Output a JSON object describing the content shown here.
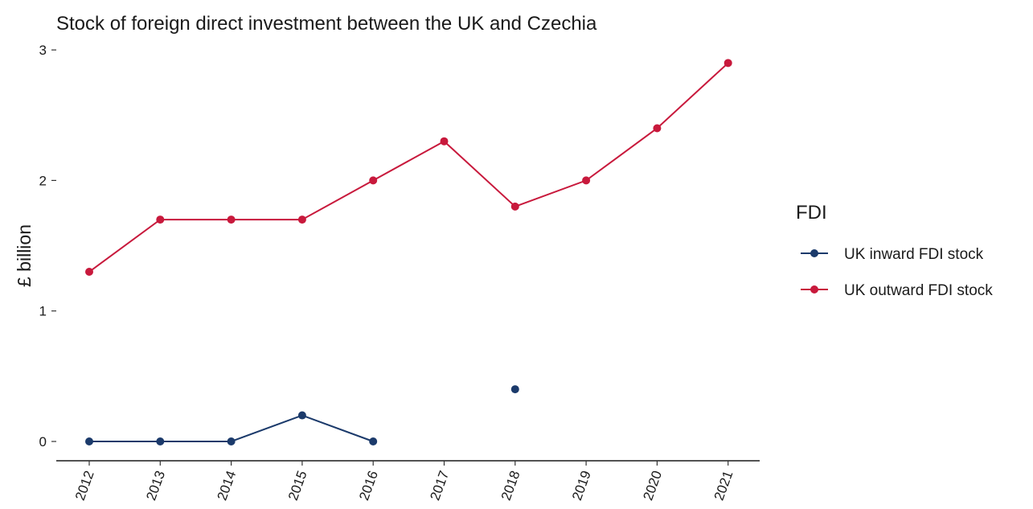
{
  "chart_data": {
    "type": "line",
    "title": "Stock of foreign direct investment between the UK and Czechia",
    "xlabel": "",
    "ylabel": "£ billion",
    "categories": [
      "2012",
      "2013",
      "2014",
      "2015",
      "2016",
      "2017",
      "2018",
      "2019",
      "2020",
      "2021"
    ],
    "y_ticks": [
      "0",
      "1",
      "2",
      "3"
    ],
    "ylim": [
      -0.15,
      3.05
    ],
    "grid": false,
    "legend": {
      "title": "FDI",
      "placement": "right"
    },
    "series": [
      {
        "name": "UK inward FDI stock",
        "color": "#1b3a6b",
        "values": [
          0,
          0,
          0,
          0.2,
          0,
          null,
          0.4,
          null,
          null,
          null
        ]
      },
      {
        "name": "UK outward FDI stock",
        "color": "#c8193c",
        "values": [
          1.3,
          1.7,
          1.7,
          1.7,
          2.0,
          2.3,
          1.8,
          2.0,
          2.4,
          2.9
        ]
      }
    ]
  }
}
